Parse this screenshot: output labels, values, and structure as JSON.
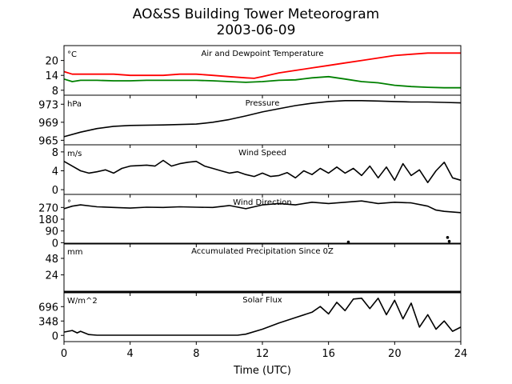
{
  "title_line1": "AO&SS Building Tower Meteorogram",
  "title_line2": "2003-06-09",
  "chart_data": {
    "type": "line",
    "xlabel": "Time (UTC)",
    "xlim": [
      0,
      24
    ],
    "xticks": [
      0,
      4,
      8,
      12,
      16,
      20,
      24
    ],
    "panels": [
      {
        "key": "temp",
        "title": "Air and Dewpoint Temperature",
        "unit": "°C",
        "ylim": [
          6,
          26
        ],
        "yticks": [
          8,
          14,
          20
        ],
        "series": [
          {
            "name": "Air Temperature",
            "color": "#ff0000",
            "x": [
              0,
              0.5,
              1,
              2,
              3,
              4,
              5,
              6,
              7,
              8,
              9,
              10,
              11,
              11.5,
              12,
              13,
              14,
              15,
              16,
              17,
              18,
              19,
              20,
              21,
              22,
              23,
              24
            ],
            "y": [
              15.5,
              14.5,
              14.5,
              14.5,
              14.5,
              14.0,
              14.0,
              14.0,
              14.5,
              14.5,
              14.0,
              13.5,
              13.0,
              12.8,
              13.5,
              15.0,
              16.0,
              17.0,
              18.0,
              19.0,
              20.0,
              21.0,
              22.0,
              22.5,
              23.0,
              23.0,
              23.0
            ]
          },
          {
            "name": "Dewpoint Temperature",
            "color": "#008000",
            "x": [
              0,
              0.5,
              1,
              2,
              3,
              4,
              5,
              6,
              7,
              8,
              9,
              10,
              11,
              12,
              13,
              14,
              15,
              16,
              17,
              18,
              19,
              20,
              21,
              22,
              23,
              24
            ],
            "y": [
              12.5,
              11.5,
              12.0,
              12.0,
              11.8,
              11.8,
              12.0,
              12.0,
              12.0,
              12.0,
              11.8,
              11.5,
              11.2,
              11.5,
              12.0,
              12.2,
              13.0,
              13.5,
              12.5,
              11.5,
              11.0,
              10.0,
              9.5,
              9.2,
              9.0,
              9.0
            ]
          }
        ]
      },
      {
        "key": "pressure",
        "title": "Pressure",
        "unit": "hPa",
        "ylim": [
          964,
          975
        ],
        "yticks": [
          965,
          969,
          973
        ],
        "series": [
          {
            "name": "Pressure",
            "color": "#000000",
            "x": [
              0,
              1,
              2,
              3,
              4,
              6,
              8,
              9,
              10,
              11,
              12,
              13,
              14,
              15,
              16,
              17,
              18,
              19,
              20,
              21,
              22,
              23,
              24
            ],
            "y": [
              965.8,
              966.8,
              967.6,
              968.1,
              968.3,
              968.4,
              968.6,
              969.0,
              969.6,
              970.4,
              971.3,
              972.0,
              972.7,
              973.2,
              973.6,
              973.8,
              973.8,
              973.7,
              973.6,
              973.5,
              973.5,
              973.4,
              973.3
            ]
          }
        ]
      },
      {
        "key": "speed",
        "title": "Wind Speed",
        "unit": "m/s",
        "ylim": [
          -1,
          9.5
        ],
        "yticks": [
          0,
          4,
          8
        ],
        "series": [
          {
            "name": "Wind Speed",
            "color": "#000000",
            "x": [
              0,
              0.5,
              1,
              1.5,
              2,
              2.5,
              3,
              3.5,
              4,
              5,
              5.5,
              6,
              6.5,
              7,
              7.5,
              8,
              8.5,
              9,
              9.5,
              10,
              10.5,
              11,
              11.5,
              12,
              12.5,
              13,
              13.5,
              14,
              14.5,
              15,
              15.5,
              16,
              16.5,
              17,
              17.5,
              18,
              18.5,
              19,
              19.5,
              20,
              20.5,
              21,
              21.5,
              22,
              22.5,
              23,
              23.5,
              24
            ],
            "y": [
              6.0,
              5.0,
              4.0,
              3.5,
              3.8,
              4.2,
              3.5,
              4.5,
              5.0,
              5.2,
              5.0,
              6.2,
              5.0,
              5.5,
              5.8,
              6.0,
              5.0,
              4.5,
              4.0,
              3.5,
              3.8,
              3.2,
              2.8,
              3.5,
              2.8,
              3.0,
              3.6,
              2.5,
              4.0,
              3.2,
              4.5,
              3.5,
              4.8,
              3.5,
              4.5,
              3.0,
              5.0,
              2.5,
              4.8,
              2.0,
              5.5,
              3.0,
              4.2,
              1.5,
              4.0,
              5.8,
              2.5,
              2.0
            ]
          }
        ]
      },
      {
        "key": "direction",
        "title": "Wind Direction",
        "unit": "°",
        "ylim": [
          -10,
          370
        ],
        "yticks": [
          0,
          90,
          180,
          270
        ],
        "series": [
          {
            "name": "Wind Direction",
            "color": "#000000",
            "x": [
              0,
              0.5,
              1,
              2,
              3,
              4,
              5,
              6,
              7,
              8,
              9,
              10,
              11,
              12,
              13,
              14,
              15,
              16,
              17,
              18,
              19,
              20,
              21,
              22,
              22.5,
              23,
              24
            ],
            "y": [
              260,
              280,
              290,
              275,
              270,
              265,
              272,
              270,
              275,
              272,
              270,
              285,
              260,
              290,
              300,
              290,
              310,
              300,
              310,
              320,
              300,
              310,
              305,
              280,
              250,
              240,
              230
            ]
          }
        ],
        "points": {
          "x": [
            17.2,
            23.2,
            23.3
          ],
          "y": [
            5,
            40,
            10
          ]
        }
      },
      {
        "key": "precip",
        "title": "Accumulated Precipitation Since 0Z",
        "unit": "mm",
        "ylim": [
          -2,
          70
        ],
        "yticks": [
          24,
          48
        ],
        "series": [
          {
            "name": "Precipitation",
            "color": "#000000",
            "x": [
              0,
              24
            ],
            "y": [
              0,
              0
            ]
          }
        ]
      },
      {
        "key": "solar",
        "title": "Solar Flux",
        "unit": "W/m^2",
        "ylim": [
          -150,
          1050
        ],
        "yticks": [
          0,
          348,
          696
        ],
        "series": [
          {
            "name": "Solar Flux",
            "color": "#000000",
            "x": [
              0,
              0.5,
              0.8,
              1,
              1.5,
              2,
              4,
              6,
              8,
              10,
              10.5,
              11,
              12,
              13,
              14,
              15,
              15.5,
              16,
              16.5,
              17,
              17.5,
              18,
              18.5,
              19,
              19.5,
              20,
              20.5,
              21,
              21.5,
              22,
              22.5,
              23,
              23.5,
              24
            ],
            "y": [
              80,
              120,
              60,
              100,
              20,
              5,
              5,
              5,
              5,
              5,
              5,
              30,
              150,
              300,
              430,
              560,
              700,
              520,
              800,
              600,
              880,
              900,
              650,
              900,
              500,
              850,
              400,
              780,
              200,
              500,
              150,
              350,
              100,
              200
            ]
          }
        ]
      }
    ]
  }
}
